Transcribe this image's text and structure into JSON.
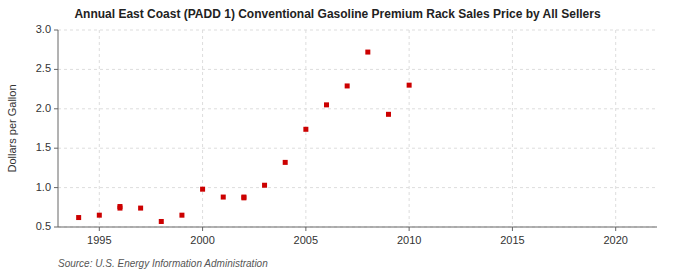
{
  "chart_data": {
    "type": "scatter",
    "title": "Annual East Coast (PADD 1) Conventional Gasoline Premium Rack Sales Price by All Sellers",
    "y_label": "Dollars per Gallon",
    "annotations": [
      "Source: U.S. Energy Information Administration"
    ],
    "color": "#cc0000",
    "marker": "square",
    "x": [
      1994,
      1995,
      1996,
      1996,
      1997,
      1998,
      1999,
      2000,
      2001,
      2002,
      2002,
      2003,
      2004,
      2005,
      2006,
      2007,
      2008,
      2009,
      2010
    ],
    "values": [
      0.62,
      0.65,
      0.74,
      0.76,
      0.74,
      0.57,
      0.65,
      0.98,
      0.88,
      0.88,
      0.87,
      1.03,
      1.32,
      1.74,
      2.05,
      2.29,
      2.72,
      1.93,
      2.3
    ],
    "xlim": [
      1993,
      2022
    ],
    "ylim": [
      0.5,
      3.0
    ],
    "xticks": [
      1995,
      2000,
      2005,
      2010,
      2015,
      2020
    ],
    "yticks": [
      0.5,
      {
        "value": 1.0,
        "label": "1.0"
      },
      1.5,
      {
        "value": 2.0,
        "label": "2.0"
      },
      2.5,
      {
        "value": 3.0,
        "label": "3.0"
      }
    ],
    "grid": true
  }
}
